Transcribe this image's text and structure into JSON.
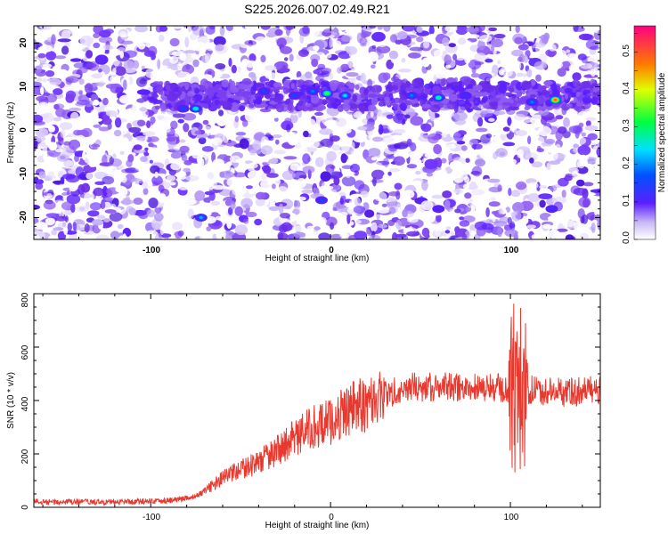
{
  "chart_data": [
    {
      "type": "heatmap",
      "title": "S225.2026.007.02.49.R21",
      "xlabel": "Height of straight line (km)",
      "ylabel": "Frequency (Hz)",
      "xlim": [
        -165,
        150
      ],
      "ylim": [
        -25,
        24
      ],
      "xticks": [
        "-100",
        "0",
        "100"
      ],
      "yticks": [
        "20",
        "10",
        "0",
        "-10",
        "-20"
      ],
      "colorbar": {
        "label": "Normalized spectral amplitude",
        "range": [
          0,
          0.57
        ],
        "ticks": [
          "0.0",
          "0.1",
          "0.2",
          "0.3",
          "0.4",
          "0.5"
        ]
      },
      "features": {
        "band_frequency_hz": 8,
        "band_x_range_km": [
          -100,
          150
        ],
        "peaks": [
          {
            "x": -75,
            "y": 5,
            "amp": 0.25
          },
          {
            "x": -82,
            "y": 5,
            "amp": 0.15
          },
          {
            "x": -37,
            "y": 9,
            "amp": 0.15
          },
          {
            "x": -20,
            "y": 8,
            "amp": 0.15
          },
          {
            "x": -10,
            "y": 9,
            "amp": 0.18
          },
          {
            "x": -2,
            "y": 8.5,
            "amp": 0.32
          },
          {
            "x": 8,
            "y": 8,
            "amp": 0.22
          },
          {
            "x": 45,
            "y": 8,
            "amp": 0.18
          },
          {
            "x": 60,
            "y": 7.5,
            "amp": 0.27
          },
          {
            "x": 75,
            "y": 8,
            "amp": 0.12
          },
          {
            "x": 112,
            "y": 6.5,
            "amp": 0.18
          },
          {
            "x": 125,
            "y": 7,
            "amp": 0.48
          },
          {
            "x": -72,
            "y": -20,
            "amp": 0.2
          },
          {
            "x": -5,
            "y": -16,
            "amp": 0.15
          },
          {
            "x": 60,
            "y": -18,
            "amp": 0.1
          },
          {
            "x": 123,
            "y": -18,
            "amp": 0.12
          }
        ]
      }
    },
    {
      "type": "line",
      "xlabel": "Height of straight line (km)",
      "ylabel": "SNR (10 * v/v)",
      "xlim": [
        -165,
        150
      ],
      "ylim": [
        0,
        800
      ],
      "xticks": [
        "-100",
        "0",
        "100"
      ],
      "yticks": [
        "800",
        "600",
        "400",
        "200",
        "0"
      ],
      "series": [
        {
          "name": "SNR",
          "color": "#e8392f",
          "x": [
            -165,
            -120,
            -90,
            -75,
            -68,
            -60,
            -50,
            -40,
            -30,
            -20,
            -10,
            0,
            10,
            20,
            30,
            40,
            60,
            80,
            95,
            100,
            102,
            104,
            106,
            108,
            110,
            130,
            150
          ],
          "y": [
            20,
            20,
            25,
            40,
            70,
            110,
            140,
            170,
            210,
            260,
            300,
            320,
            370,
            390,
            420,
            450,
            450,
            450,
            445,
            430,
            300,
            600,
            100,
            700,
            440,
            430,
            440
          ]
        }
      ]
    }
  ]
}
